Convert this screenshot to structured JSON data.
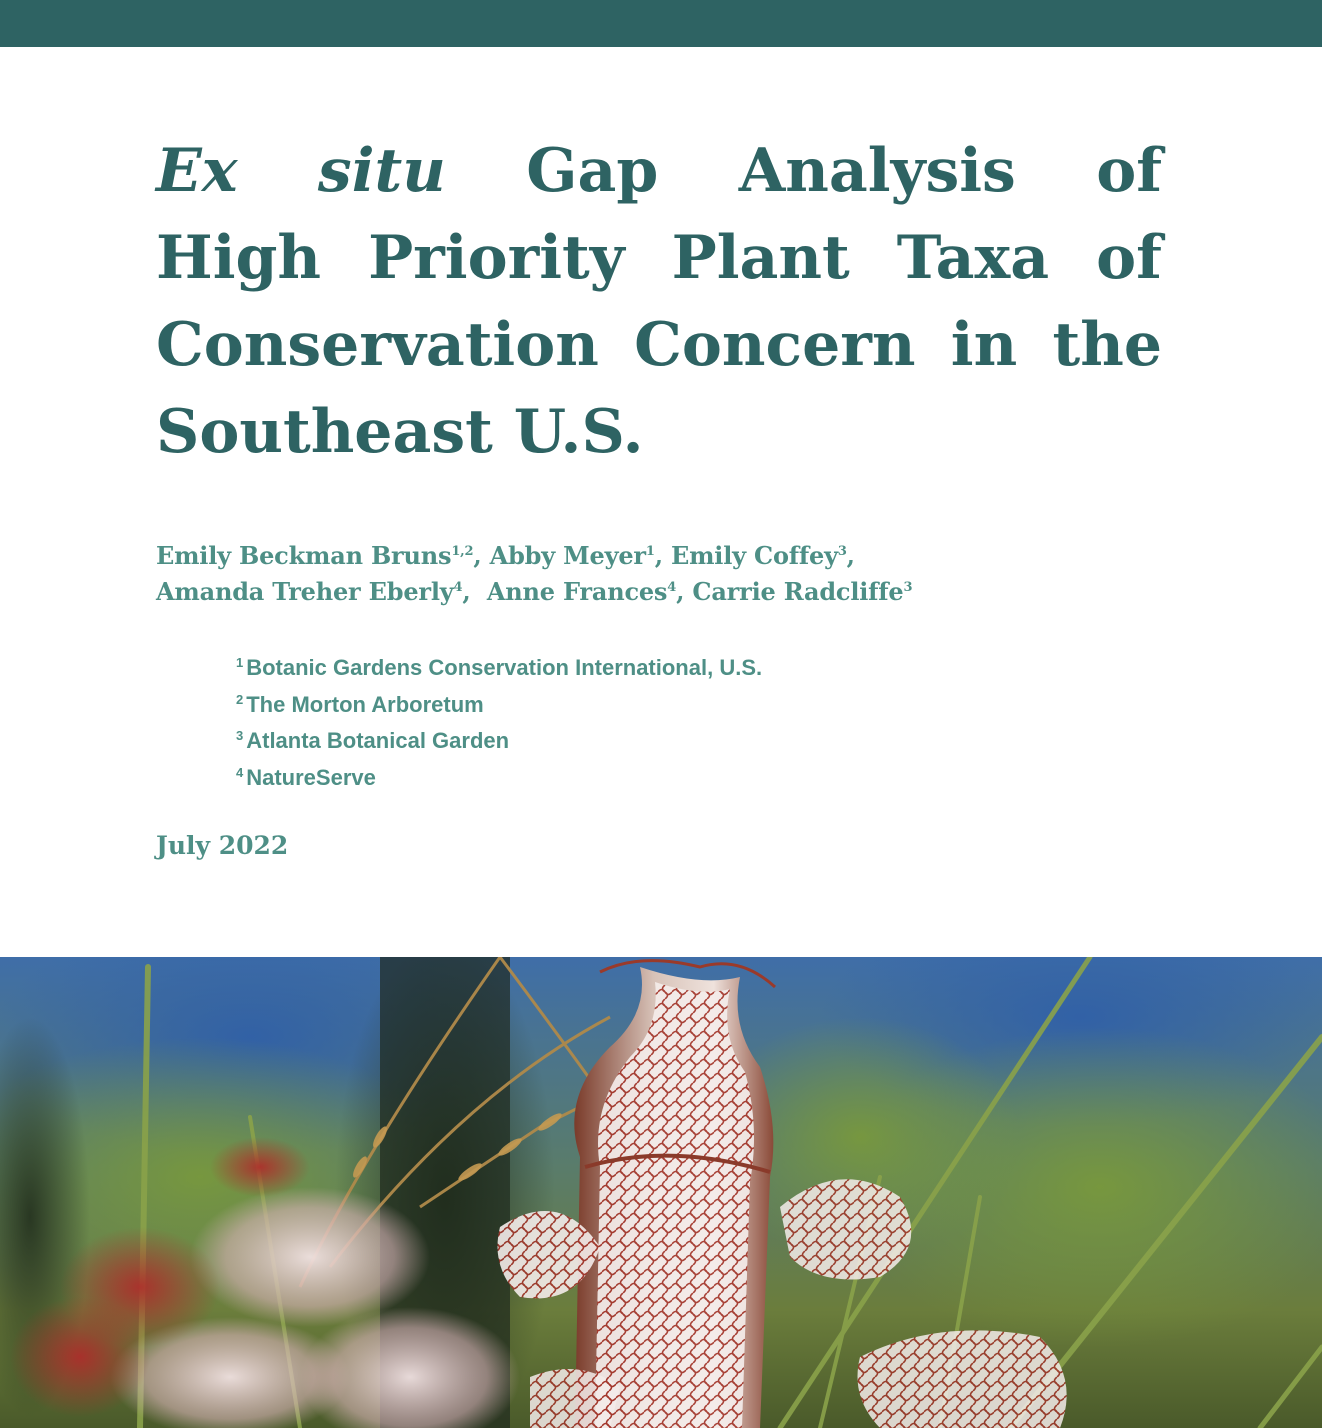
{
  "title": {
    "line1": {
      "italic_1": "Ex",
      "italic_2": "situ",
      "word_3": "Gap",
      "word_4": "Analysis",
      "word_5": "of"
    },
    "line2": {
      "word_1": "High",
      "word_2": "Priority",
      "word_3": "Plant",
      "word_4": "Taxa",
      "word_5": "of"
    },
    "line3": {
      "word_1": "Conservation",
      "word_2": "Concern",
      "word_3": "in",
      "word_4": "the"
    },
    "line4": "Southeast U.S."
  },
  "authors": [
    {
      "name": "Emily Beckman Bruns",
      "sup": "1,2",
      "sep": ", "
    },
    {
      "name": "Abby Meyer",
      "sup": "1",
      "sep": ", "
    },
    {
      "name": "Emily Coffey",
      "sup": "3",
      "sep": ","
    },
    {
      "name": "Amanda Treher Eberly",
      "sup": "4",
      "sep": ",  "
    },
    {
      "name": "Anne Frances",
      "sup": "4",
      "sep": ", "
    },
    {
      "name": "Carrie Radcliffe",
      "sup": "3",
      "sep": ""
    }
  ],
  "affiliations": [
    {
      "num": "1",
      "name": "Botanic Gardens Conservation International, U.S."
    },
    {
      "num": "2",
      "name": "The Morton Arboretum"
    },
    {
      "num": "3",
      "name": "Atlanta Botanical Garden"
    },
    {
      "num": "4",
      "name": "NatureServe"
    }
  ],
  "date": "July 2022",
  "colors": {
    "brand_teal": "#2e6363",
    "text_teal": "#4e8f86"
  },
  "cover_photo": {
    "subject": "white-topped pitcher plant"
  }
}
